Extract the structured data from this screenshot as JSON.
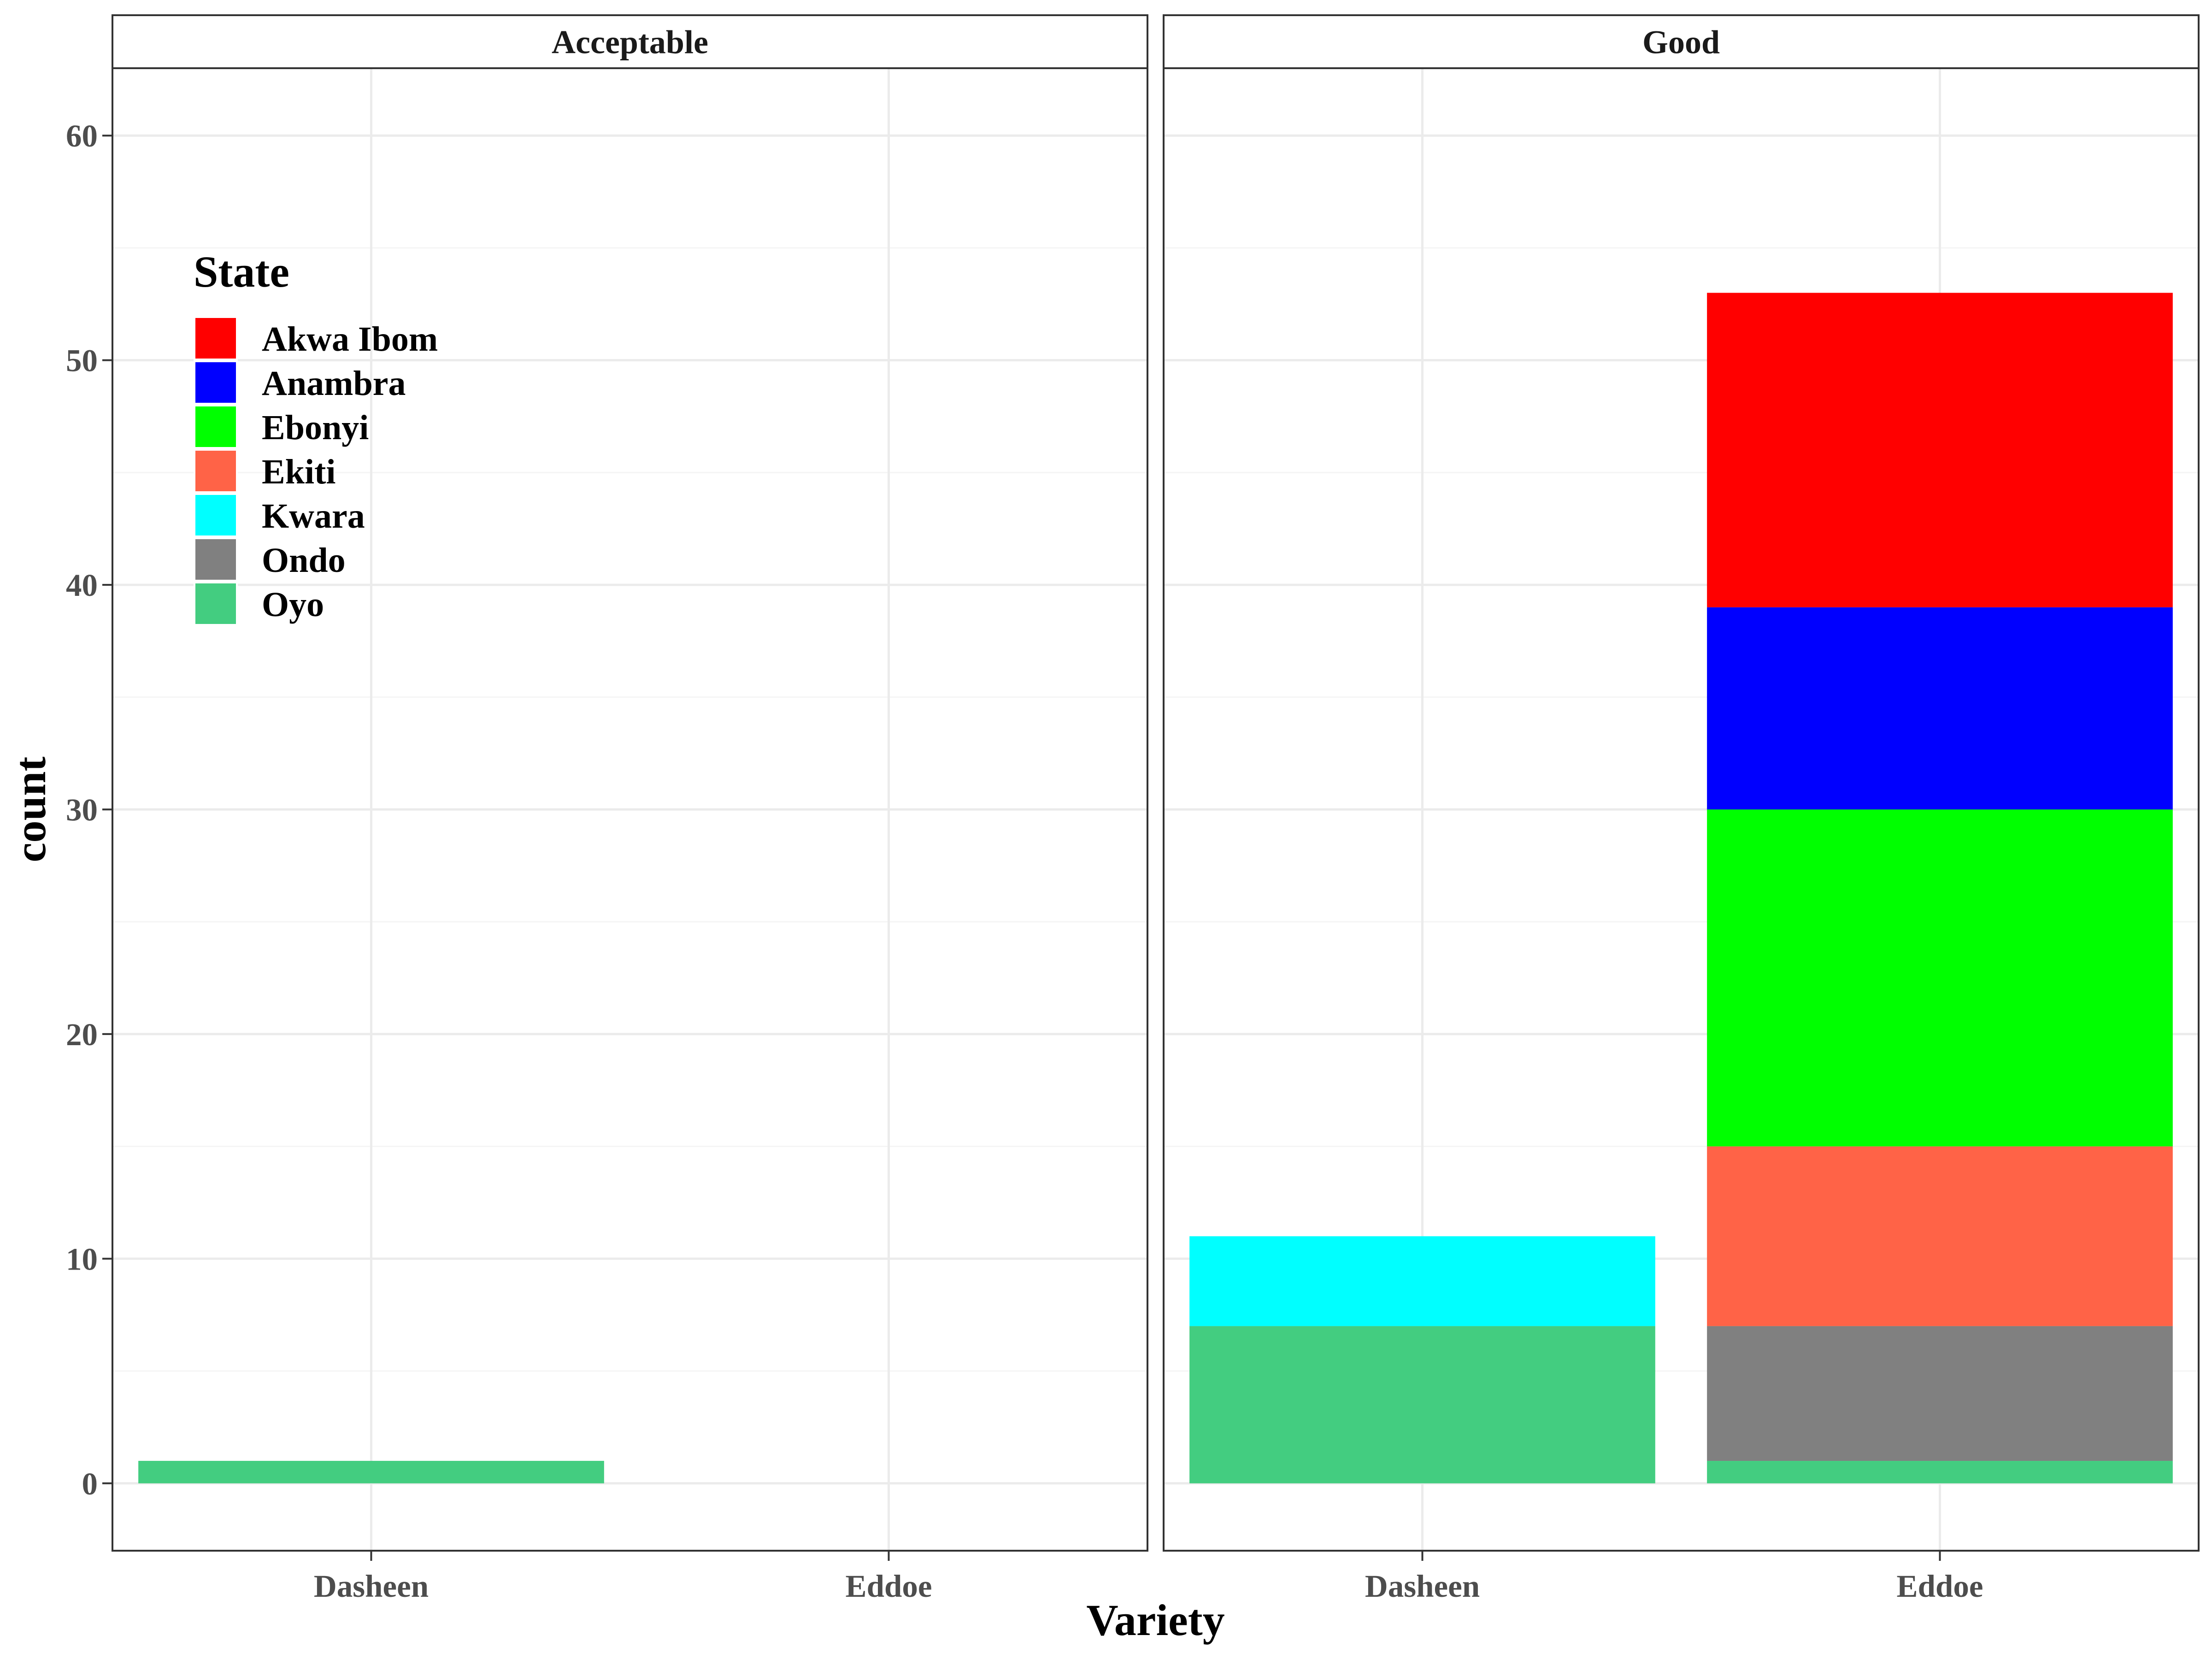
{
  "chart_data": {
    "type": "bar",
    "stacked": true,
    "facet_by": "Quality",
    "panels": [
      {
        "label": "Acceptable",
        "categories": [
          "Dasheen",
          "Eddoe"
        ],
        "series": [
          {
            "name": "Akwa Ibom",
            "values": [
              0,
              0
            ]
          },
          {
            "name": "Anambra",
            "values": [
              0,
              0
            ]
          },
          {
            "name": "Ebonyi",
            "values": [
              0,
              0
            ]
          },
          {
            "name": "Ekiti",
            "values": [
              0,
              0
            ]
          },
          {
            "name": "Kwara",
            "values": [
              0,
              0
            ]
          },
          {
            "name": "Ondo",
            "values": [
              0,
              0
            ]
          },
          {
            "name": "Oyo",
            "values": [
              1,
              0
            ]
          }
        ]
      },
      {
        "label": "Good",
        "categories": [
          "Dasheen",
          "Eddoe"
        ],
        "series": [
          {
            "name": "Akwa Ibom",
            "values": [
              0,
              14
            ]
          },
          {
            "name": "Anambra",
            "values": [
              0,
              9
            ]
          },
          {
            "name": "Ebonyi",
            "values": [
              0,
              15
            ]
          },
          {
            "name": "Ekiti",
            "values": [
              0,
              8
            ]
          },
          {
            "name": "Kwara",
            "values": [
              4,
              0
            ]
          },
          {
            "name": "Ondo",
            "values": [
              0,
              6
            ]
          },
          {
            "name": "Oyo",
            "values": [
              7,
              1
            ]
          }
        ]
      }
    ],
    "xlabel": "Variety",
    "ylabel": "count",
    "ylim": [
      -3,
      63
    ],
    "yticks": [
      0,
      10,
      20,
      30,
      40,
      50,
      60
    ],
    "grid": true,
    "legend": {
      "title": "State",
      "placement": "top-left inside",
      "entries": [
        "Akwa Ibom",
        "Anambra",
        "Ebonyi",
        "Ekiti",
        "Kwara",
        "Ondo",
        "Oyo"
      ]
    },
    "colors": {
      "Akwa Ibom": "#ff0000",
      "Anambra": "#0000ff",
      "Ebonyi": "#00ff00",
      "Ekiti": "#ff6347",
      "Kwara": "#00ffff",
      "Ondo": "#808080",
      "Oyo": "#43cd80"
    }
  }
}
